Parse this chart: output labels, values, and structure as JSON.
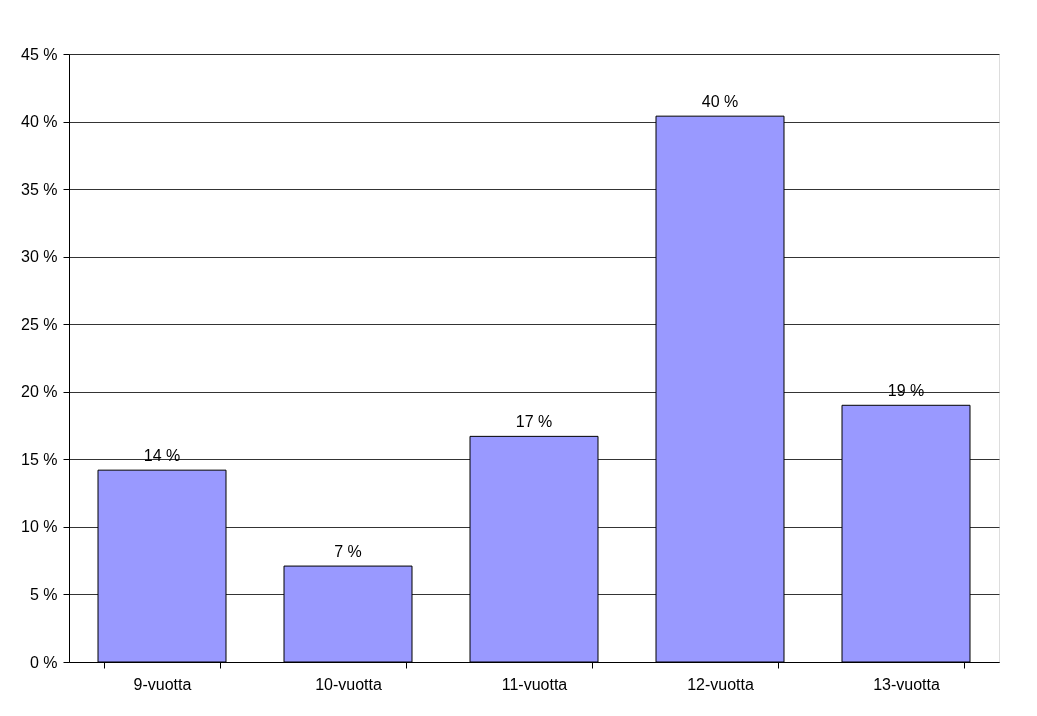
{
  "chart_data": {
    "type": "bar",
    "categories": [
      "9-vuotta",
      "10-vuotta",
      "11-vuotta",
      "12-vuotta",
      "13-vuotta"
    ],
    "values": [
      14.2,
      7.1,
      16.7,
      40.4,
      19.0
    ],
    "value_labels": [
      "14 %",
      "7 %",
      "17 %",
      "40 %",
      "19 %"
    ],
    "color": "#9999ff",
    "ylim": [
      0,
      45
    ],
    "yticks": [
      {
        "value": 0,
        "label": "0 %"
      },
      {
        "value": 5,
        "label": "5 %"
      },
      {
        "value": 10,
        "label": "10 %"
      },
      {
        "value": 15,
        "label": "15 %"
      },
      {
        "value": 20,
        "label": "20 %"
      },
      {
        "value": 25,
        "label": "25 %"
      },
      {
        "value": 30,
        "label": "30 %"
      },
      {
        "value": 35,
        "label": "35 %"
      },
      {
        "value": 40,
        "label": "40 %"
      },
      {
        "value": 45,
        "label": "45 %"
      }
    ],
    "grid": "y"
  }
}
